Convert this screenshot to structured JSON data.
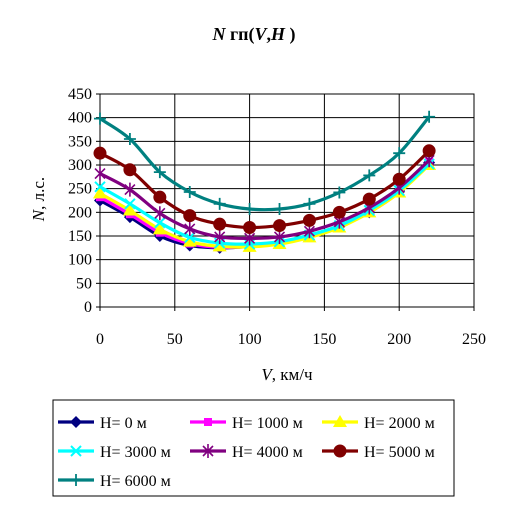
{
  "chart_data": {
    "type": "line",
    "title": "N гп(V,H )",
    "title_parts": {
      "n": "N",
      "mid": " гп(",
      "v": "V",
      "comma": ",",
      "h": "H",
      "end": " )"
    },
    "xlabel_parts": {
      "var": "V",
      "unit": ", км/ч"
    },
    "ylabel_parts": {
      "var": "N",
      "unit": ", л.с."
    },
    "xlim": [
      0,
      250
    ],
    "ylim": [
      0,
      450
    ],
    "x_ticks": [
      "0",
      "50",
      "100",
      "150",
      "200",
      "250"
    ],
    "y_ticks": [
      "0",
      "50",
      "100",
      "150",
      "200",
      "250",
      "300",
      "350",
      "400",
      "450"
    ],
    "grid": true,
    "legend_position": "bottom",
    "x": [
      0,
      20,
      40,
      60,
      80,
      100,
      120,
      140,
      160,
      180,
      200,
      220
    ],
    "series": [
      {
        "name": "H= 0 м",
        "color": "#000080",
        "marker": "diamond",
        "values": [
          225,
          190,
          150,
          130,
          125,
          128,
          135,
          150,
          170,
          200,
          245,
          305
        ]
      },
      {
        "name": "H= 1000 м",
        "color": "#FF00FF",
        "marker": "square",
        "values": [
          232,
          196,
          157,
          134,
          126,
          128,
          135,
          150,
          170,
          200,
          243,
          307
        ]
      },
      {
        "name": "H= 2000 м",
        "color": "#FFFF00",
        "marker": "triangle",
        "values": [
          240,
          204,
          164,
          138,
          128,
          127,
          133,
          147,
          168,
          200,
          242,
          300
        ]
      },
      {
        "name": "H= 3000 м",
        "color": "#00FFFF",
        "marker": "x",
        "values": [
          254,
          218,
          178,
          147,
          135,
          133,
          138,
          152,
          172,
          204,
          246,
          302
        ]
      },
      {
        "name": "H= 4000 м",
        "color": "#800080",
        "marker": "star",
        "values": [
          282,
          248,
          198,
          165,
          148,
          145,
          148,
          160,
          180,
          210,
          252,
          310
        ]
      },
      {
        "name": "H= 5000 м",
        "color": "#800000",
        "marker": "circle",
        "values": [
          325,
          290,
          232,
          193,
          175,
          168,
          172,
          183,
          200,
          228,
          270,
          330
        ]
      },
      {
        "name": "H= 6000 м",
        "color": "#008080",
        "marker": "plus",
        "values": [
          398,
          355,
          285,
          243,
          218,
          207,
          207,
          218,
          242,
          278,
          325,
          402
        ]
      }
    ]
  }
}
